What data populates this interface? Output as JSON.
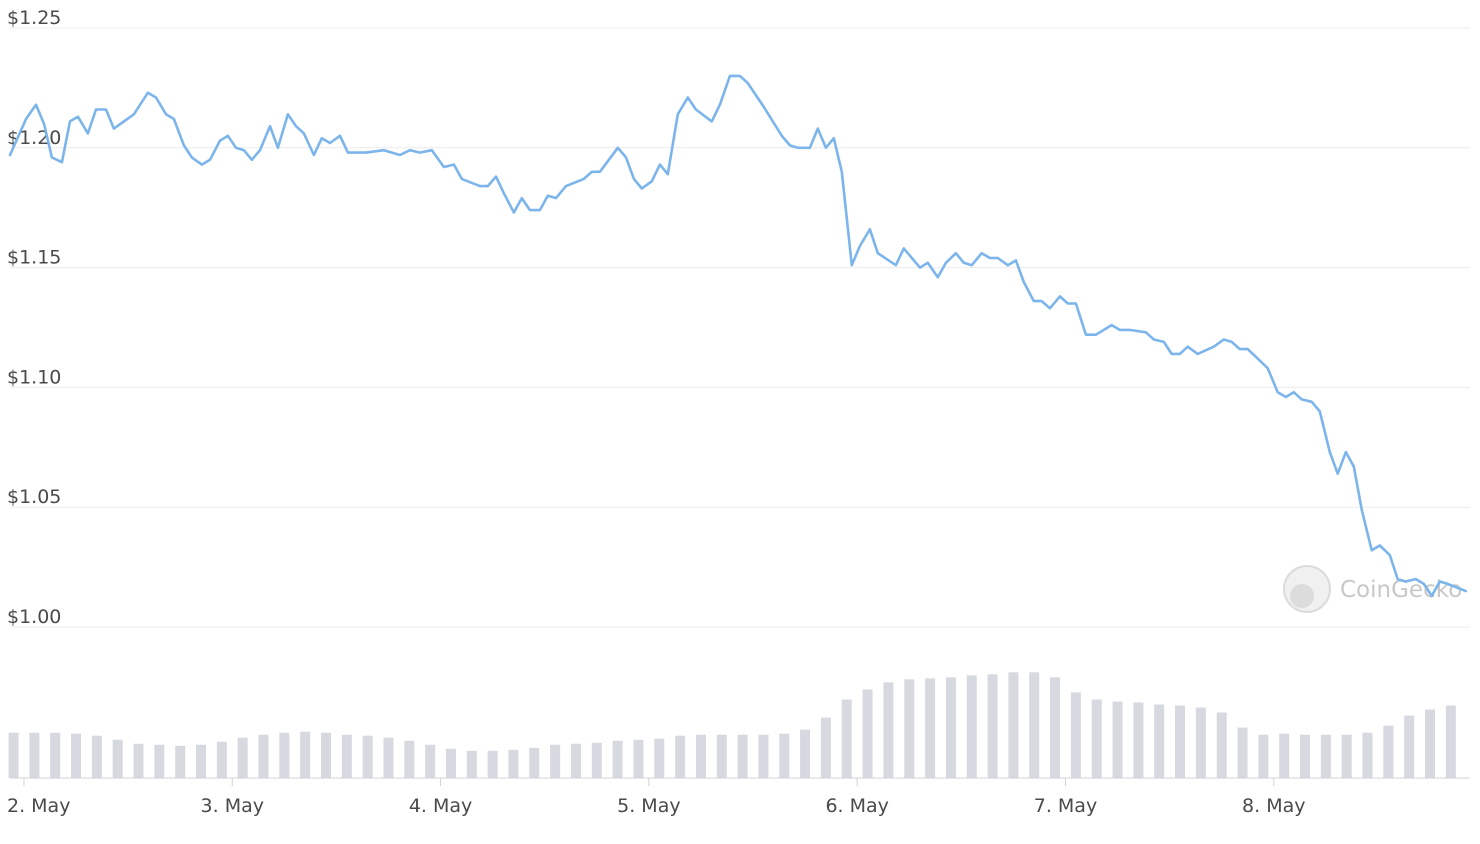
{
  "chart_data": {
    "type": "line",
    "color": "#7cb5ec",
    "grid": true,
    "watermark": "CoinGecko",
    "xlim": [
      1.933,
      8.942
    ],
    "xticks": [
      {
        "value": 2,
        "label": "2. May"
      },
      {
        "value": 3,
        "label": "3. May"
      },
      {
        "value": 4,
        "label": "4. May"
      },
      {
        "value": 5,
        "label": "5. May"
      },
      {
        "value": 6,
        "label": "6. May"
      },
      {
        "value": 7,
        "label": "7. May"
      },
      {
        "value": 8,
        "label": "8. May"
      }
    ],
    "ylim": [
      1.0,
      1.25
    ],
    "yticks": [
      {
        "value": 1.0,
        "label": "$1.00"
      },
      {
        "value": 1.05,
        "label": "$1.05"
      },
      {
        "value": 1.1,
        "label": "$1.10"
      },
      {
        "value": 1.15,
        "label": "$1.15"
      },
      {
        "value": 1.2,
        "label": "$1.20"
      },
      {
        "value": 1.25,
        "label": "$1.25"
      }
    ],
    "series": [
      {
        "color": "#7cb5ec",
        "x": [
          1.933,
          2.01,
          2.058,
          2.096,
          2.134,
          2.182,
          2.221,
          2.259,
          2.307,
          2.346,
          2.394,
          2.432,
          2.528,
          2.595,
          2.634,
          2.682,
          2.72,
          2.768,
          2.806,
          2.854,
          2.893,
          2.941,
          2.979,
          3.018,
          3.056,
          3.094,
          3.133,
          3.181,
          3.219,
          3.267,
          3.306,
          3.344,
          3.392,
          3.43,
          3.469,
          3.517,
          3.555,
          3.642,
          3.728,
          3.805,
          3.853,
          3.901,
          3.958,
          4.016,
          4.064,
          4.102,
          4.189,
          4.227,
          4.266,
          4.304,
          4.352,
          4.39,
          4.429,
          4.477,
          4.515,
          4.554,
          4.602,
          4.688,
          4.726,
          4.765,
          4.851,
          4.89,
          4.928,
          4.966,
          5.014,
          5.053,
          5.091,
          5.139,
          5.187,
          5.226,
          5.302,
          5.341,
          5.389,
          5.437,
          5.475,
          5.552,
          5.638,
          5.677,
          5.715,
          5.773,
          5.811,
          5.85,
          5.888,
          5.926,
          5.974,
          6.013,
          6.061,
          6.099,
          6.186,
          6.224,
          6.301,
          6.339,
          6.387,
          6.426,
          6.474,
          6.512,
          6.55,
          6.598,
          6.637,
          6.675,
          6.723,
          6.762,
          6.8,
          6.848,
          6.886,
          6.925,
          6.973,
          7.011,
          7.05,
          7.098,
          7.146,
          7.222,
          7.261,
          7.309,
          7.386,
          7.424,
          7.472,
          7.51,
          7.549,
          7.587,
          7.635,
          7.712,
          7.76,
          7.798,
          7.837,
          7.875,
          7.923,
          7.971,
          8.019,
          8.058,
          8.096,
          8.134,
          8.182,
          8.221,
          8.269,
          8.307,
          8.346,
          8.384,
          8.422,
          8.47,
          8.509,
          8.557,
          8.595,
          8.634,
          8.682,
          8.72,
          8.758,
          8.797,
          8.835,
          8.922
        ],
        "values": [
          1.197,
          1.212,
          1.218,
          1.21,
          1.196,
          1.194,
          1.211,
          1.213,
          1.206,
          1.216,
          1.216,
          1.208,
          1.214,
          1.223,
          1.221,
          1.214,
          1.212,
          1.201,
          1.196,
          1.193,
          1.195,
          1.203,
          1.205,
          1.2,
          1.199,
          1.195,
          1.199,
          1.209,
          1.2,
          1.214,
          1.209,
          1.206,
          1.197,
          1.204,
          1.202,
          1.205,
          1.198,
          1.198,
          1.199,
          1.197,
          1.199,
          1.198,
          1.199,
          1.192,
          1.193,
          1.187,
          1.184,
          1.184,
          1.188,
          1.181,
          1.173,
          1.179,
          1.174,
          1.174,
          1.18,
          1.179,
          1.184,
          1.187,
          1.19,
          1.19,
          1.2,
          1.196,
          1.187,
          1.183,
          1.186,
          1.193,
          1.189,
          1.214,
          1.221,
          1.216,
          1.211,
          1.218,
          1.23,
          1.23,
          1.227,
          1.217,
          1.205,
          1.201,
          1.2,
          1.2,
          1.208,
          1.2,
          1.204,
          1.19,
          1.151,
          1.159,
          1.166,
          1.156,
          1.151,
          1.158,
          1.15,
          1.152,
          1.146,
          1.152,
          1.156,
          1.152,
          1.151,
          1.156,
          1.154,
          1.154,
          1.151,
          1.153,
          1.144,
          1.136,
          1.136,
          1.133,
          1.138,
          1.135,
          1.135,
          1.122,
          1.122,
          1.126,
          1.124,
          1.124,
          1.123,
          1.12,
          1.119,
          1.114,
          1.114,
          1.117,
          1.114,
          1.117,
          1.12,
          1.119,
          1.116,
          1.116,
          1.112,
          1.108,
          1.098,
          1.096,
          1.098,
          1.095,
          1.094,
          1.09,
          1.073,
          1.064,
          1.073,
          1.067,
          1.049,
          1.032,
          1.034,
          1.03,
          1.02,
          1.019,
          1.02,
          1.018,
          1.013,
          1.019,
          1.018,
          1.015
        ]
      }
    ],
    "volume": {
      "color": "#d6d9df",
      "lim": [
        0,
        150
      ],
      "x": [
        1.95,
        2.05,
        2.15,
        2.25,
        2.35,
        2.45,
        2.55,
        2.65,
        2.75,
        2.85,
        2.95,
        3.05,
        3.15,
        3.25,
        3.35,
        3.45,
        3.55,
        3.65,
        3.75,
        3.85,
        3.95,
        4.05,
        4.15,
        4.25,
        4.35,
        4.45,
        4.55,
        4.65,
        4.75,
        4.85,
        4.95,
        5.05,
        5.15,
        5.25,
        5.35,
        5.45,
        5.55,
        5.65,
        5.75,
        5.85,
        5.95,
        6.05,
        6.15,
        6.25,
        6.35,
        6.45,
        6.55,
        6.65,
        6.75,
        6.85,
        6.95,
        7.05,
        7.15,
        7.25,
        7.35,
        7.45,
        7.55,
        7.65,
        7.75,
        7.85,
        7.95,
        8.05,
        8.15,
        8.25,
        8.35,
        8.45,
        8.55,
        8.65,
        8.75,
        8.85
      ],
      "values": [
        45,
        45,
        45,
        44,
        42,
        38,
        34,
        33,
        32,
        33,
        36,
        40,
        43,
        45,
        46,
        45,
        43,
        42,
        40,
        37,
        33,
        29,
        27,
        27,
        28,
        30,
        33,
        34,
        35,
        37,
        38,
        39,
        42,
        43,
        43,
        43,
        43,
        44,
        48,
        60,
        78,
        88,
        95,
        98,
        99,
        100,
        102,
        103,
        105,
        105,
        100,
        85,
        78,
        76,
        75,
        73,
        72,
        70,
        65,
        50,
        43,
        44,
        43,
        43,
        43,
        45,
        52,
        62,
        68,
        72
      ]
    }
  }
}
